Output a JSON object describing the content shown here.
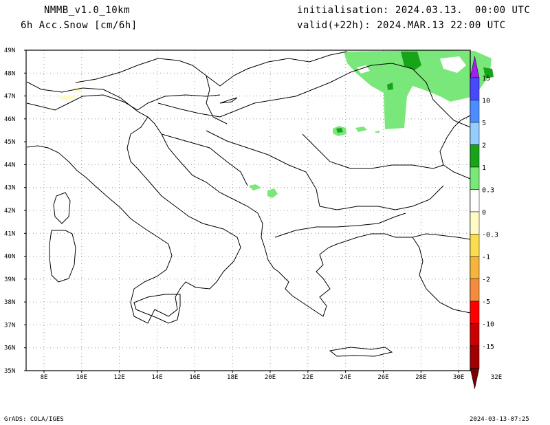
{
  "header": {
    "model": "NMMB_v1.0_10km",
    "field": "6h Acc.Snow [cm/6h]",
    "init": "initialisation: 2024.03.13.  00:00 UTC",
    "valid": "valid(+22h): 2024.MAR.13 22:00 UTC"
  },
  "axes": {
    "lat_labels": [
      "49N",
      "48N",
      "47N",
      "46N",
      "45N",
      "44N",
      "43N",
      "42N",
      "41N",
      "40N",
      "39N",
      "38N",
      "37N",
      "36N",
      "35N"
    ],
    "lon_labels": [
      "8E",
      "10E",
      "12E",
      "14E",
      "16E",
      "18E",
      "20E",
      "22E",
      "24E",
      "26E",
      "28E",
      "30E",
      "32E"
    ]
  },
  "colorbar": {
    "labels": [
      "15",
      "10",
      "5",
      "2",
      "1",
      "0.3",
      "0",
      "-0.3",
      "-1",
      "-2",
      "-5",
      "-10",
      "-15"
    ],
    "colors": [
      "#a020f0",
      "#4848ff",
      "#4b8cff",
      "#96cdff",
      "#18a418",
      "#7ae77a",
      "#ffffff",
      "#fffac8",
      "#fadc50",
      "#f5b43c",
      "#f58c3c",
      "#ff0000",
      "#c80000",
      "#a00000",
      "#780000"
    ]
  },
  "footer": {
    "left": "GrADS: COLA/IGES",
    "right": "2024-03-13-07:25"
  }
}
